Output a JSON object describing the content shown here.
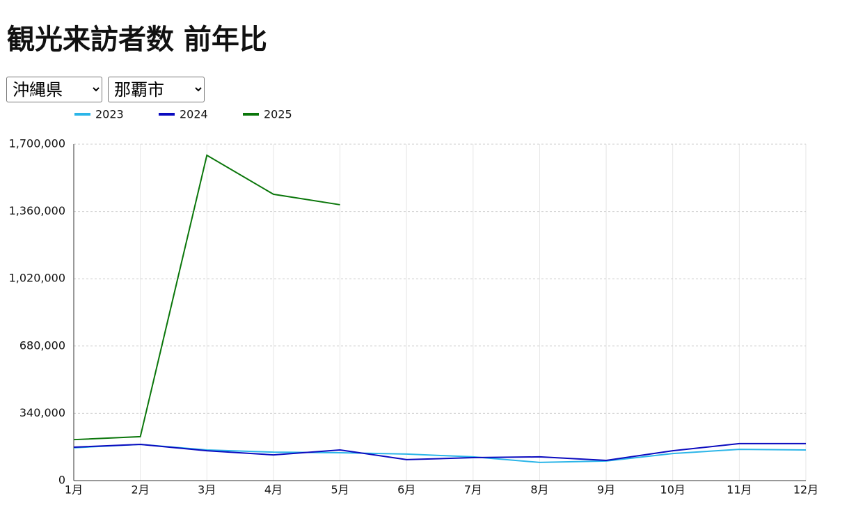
{
  "title": "観光来訪者数 前年比",
  "selects": [
    "沖縄県",
    "那覇市"
  ],
  "chart_data": {
    "type": "line",
    "categories": [
      "1月",
      "2月",
      "3月",
      "4月",
      "5月",
      "6月",
      "7月",
      "8月",
      "9月",
      "10月",
      "11月",
      "12月"
    ],
    "series": [
      {
        "name": "2023",
        "color": "#2bb5e8",
        "values": [
          166000,
          183000,
          155000,
          144000,
          141000,
          134000,
          120000,
          92000,
          99000,
          137000,
          158000,
          155000
        ]
      },
      {
        "name": "2024",
        "color": "#0b0bbf",
        "values": [
          169000,
          183000,
          151000,
          130000,
          155000,
          106000,
          116000,
          120000,
          102000,
          151000,
          187000,
          187000
        ]
      },
      {
        "name": "2025",
        "color": "#0a760a",
        "values": [
          207000,
          222000,
          1644000,
          1447000,
          1394000,
          null,
          null,
          null,
          null,
          null,
          null,
          null
        ]
      }
    ],
    "ylim": [
      0,
      1700000
    ],
    "yticks": [
      0,
      {
        "value": 340000,
        "label": "340,000"
      },
      {
        "value": 680000,
        "label": "680,000"
      },
      {
        "value": 1020000,
        "label": "1,020,000"
      },
      {
        "value": 1360000,
        "label": "1,360,000"
      },
      {
        "value": 1700000,
        "label": "1,700,000"
      }
    ],
    "grid": true
  }
}
